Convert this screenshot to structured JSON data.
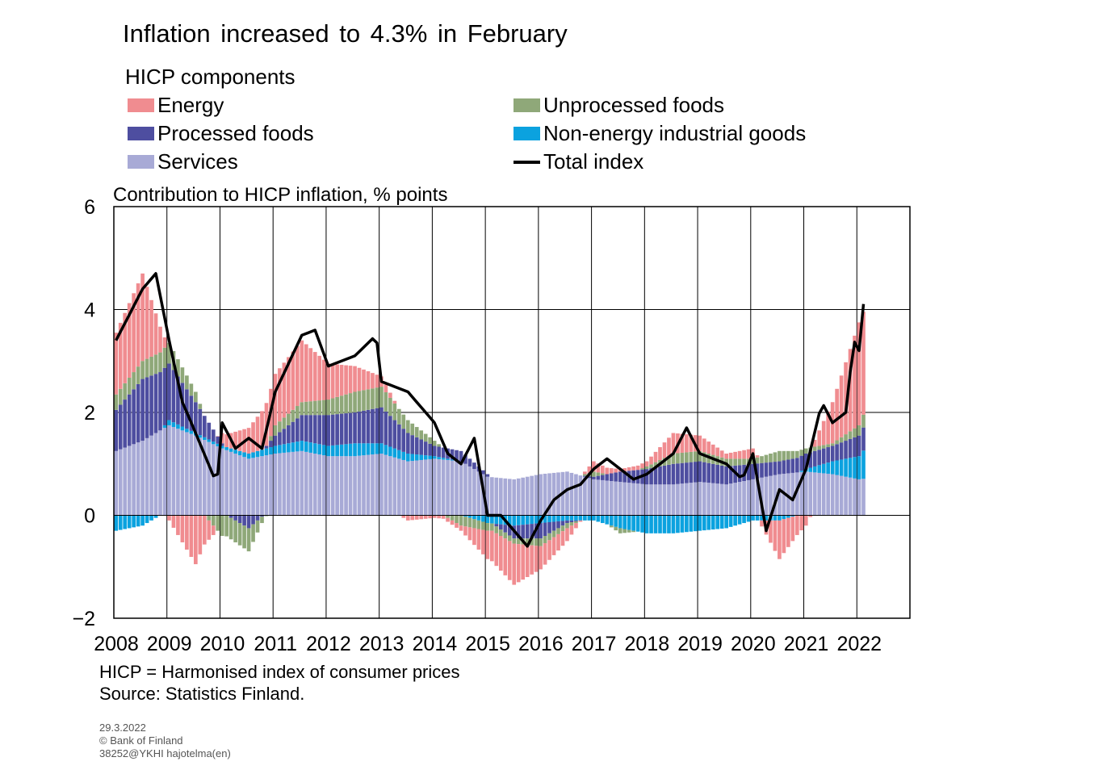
{
  "title": "Inflation increased to 4.3% in February",
  "subtitle": "HICP components",
  "legend": [
    {
      "label": "Energy",
      "color": "#f08c90",
      "kind": "bar"
    },
    {
      "label": "Unprocessed foods",
      "color": "#8fa879",
      "kind": "bar"
    },
    {
      "label": "Processed foods",
      "color": "#4e4ea0",
      "kind": "bar"
    },
    {
      "label": "Non-energy industrial goods",
      "color": "#0ba2df",
      "kind": "bar"
    },
    {
      "label": "Services",
      "color": "#a8aad6",
      "kind": "bar"
    },
    {
      "label": "Total index",
      "color": "#000000",
      "kind": "line"
    }
  ],
  "footnotes": {
    "line1": "HICP = Harmonised index of consumer prices",
    "line2": "Source: Statistics Finland."
  },
  "meta": {
    "date": "29.3.2022",
    "copyright": "© Bank of Finland",
    "code": "38252@YKHI hajotelma(en)"
  },
  "chart_data": {
    "type": "bar",
    "stacked": true,
    "ylabel": "Contribution to HICP inflation, % points",
    "ylim": [
      -2,
      6
    ],
    "yticks": [
      "−2",
      "0",
      "2",
      "4",
      "6"
    ],
    "ytick_values": [
      -2,
      0,
      2,
      4,
      6
    ],
    "xticks": [
      "2008",
      "2009",
      "2010",
      "2011",
      "2012",
      "2013",
      "2014",
      "2015",
      "2016",
      "2017",
      "2018",
      "2019",
      "2020",
      "2021",
      "2022"
    ],
    "grid": true,
    "x_start": "2008-01",
    "interval": "monthly",
    "x_end": "2022-02",
    "series_anchors_note": "values given at yearly anchor points as [year, value]; monthly values interpolated",
    "series": [
      {
        "name": "Services",
        "color": "#a8aad6",
        "anchors": [
          [
            2008.0,
            1.25
          ],
          [
            2008.5,
            1.45
          ],
          [
            2009.0,
            1.75
          ],
          [
            2009.5,
            1.55
          ],
          [
            2010.0,
            1.3
          ],
          [
            2010.5,
            1.1
          ],
          [
            2011.0,
            1.2
          ],
          [
            2011.5,
            1.25
          ],
          [
            2012.0,
            1.15
          ],
          [
            2012.5,
            1.15
          ],
          [
            2013.0,
            1.2
          ],
          [
            2013.5,
            1.05
          ],
          [
            2014.0,
            1.1
          ],
          [
            2014.5,
            1.05
          ],
          [
            2015.0,
            0.75
          ],
          [
            2015.5,
            0.7
          ],
          [
            2016.0,
            0.8
          ],
          [
            2016.5,
            0.85
          ],
          [
            2017.0,
            0.7
          ],
          [
            2017.5,
            0.65
          ],
          [
            2018.0,
            0.6
          ],
          [
            2018.5,
            0.6
          ],
          [
            2019.0,
            0.65
          ],
          [
            2019.5,
            0.6
          ],
          [
            2020.0,
            0.7
          ],
          [
            2020.5,
            0.8
          ],
          [
            2021.0,
            0.85
          ],
          [
            2021.5,
            0.8
          ],
          [
            2022.0,
            0.7
          ],
          [
            2022.17,
            0.72
          ]
        ]
      },
      {
        "name": "Non-energy industrial goods",
        "color": "#0ba2df",
        "anchors": [
          [
            2008.0,
            -0.3
          ],
          [
            2008.5,
            -0.2
          ],
          [
            2009.0,
            0.1
          ],
          [
            2009.5,
            0.05
          ],
          [
            2010.0,
            0.05
          ],
          [
            2010.5,
            0.1
          ],
          [
            2011.0,
            0.15
          ],
          [
            2011.5,
            0.2
          ],
          [
            2012.0,
            0.2
          ],
          [
            2012.5,
            0.25
          ],
          [
            2013.0,
            0.2
          ],
          [
            2013.5,
            0.15
          ],
          [
            2014.0,
            0.05
          ],
          [
            2014.5,
            0.0
          ],
          [
            2015.0,
            -0.15
          ],
          [
            2015.5,
            -0.2
          ],
          [
            2016.0,
            -0.15
          ],
          [
            2016.5,
            -0.1
          ],
          [
            2017.0,
            -0.1
          ],
          [
            2017.5,
            -0.25
          ],
          [
            2018.0,
            -0.35
          ],
          [
            2018.5,
            -0.35
          ],
          [
            2019.0,
            -0.3
          ],
          [
            2019.5,
            -0.25
          ],
          [
            2020.0,
            -0.1
          ],
          [
            2020.5,
            -0.1
          ],
          [
            2021.0,
            0.05
          ],
          [
            2021.5,
            0.25
          ],
          [
            2022.0,
            0.45
          ],
          [
            2022.17,
            0.65
          ]
        ]
      },
      {
        "name": "Processed foods",
        "color": "#4e4ea0",
        "anchors": [
          [
            2008.0,
            0.8
          ],
          [
            2008.5,
            1.2
          ],
          [
            2009.0,
            1.1
          ],
          [
            2009.5,
            0.6
          ],
          [
            2010.0,
            0.05
          ],
          [
            2010.5,
            -0.25
          ],
          [
            2011.0,
            0.2
          ],
          [
            2011.5,
            0.5
          ],
          [
            2012.0,
            0.6
          ],
          [
            2012.5,
            0.6
          ],
          [
            2013.0,
            0.7
          ],
          [
            2013.5,
            0.4
          ],
          [
            2014.0,
            0.2
          ],
          [
            2014.5,
            0.2
          ],
          [
            2015.0,
            0.05
          ],
          [
            2015.5,
            -0.25
          ],
          [
            2016.0,
            -0.3
          ],
          [
            2016.5,
            -0.05
          ],
          [
            2017.0,
            0.05
          ],
          [
            2017.5,
            0.2
          ],
          [
            2018.0,
            0.3
          ],
          [
            2018.5,
            0.4
          ],
          [
            2019.0,
            0.4
          ],
          [
            2019.5,
            0.35
          ],
          [
            2020.0,
            0.3
          ],
          [
            2020.5,
            0.25
          ],
          [
            2021.0,
            0.3
          ],
          [
            2021.5,
            0.3
          ],
          [
            2022.0,
            0.4
          ],
          [
            2022.17,
            0.5
          ]
        ]
      },
      {
        "name": "Unprocessed foods",
        "color": "#8fa879",
        "anchors": [
          [
            2008.0,
            0.3
          ],
          [
            2008.5,
            0.35
          ],
          [
            2009.0,
            0.4
          ],
          [
            2009.5,
            0.2
          ],
          [
            2010.0,
            -0.4
          ],
          [
            2010.5,
            -0.45
          ],
          [
            2011.0,
            0.2
          ],
          [
            2011.5,
            0.25
          ],
          [
            2012.0,
            0.3
          ],
          [
            2012.5,
            0.4
          ],
          [
            2013.0,
            0.4
          ],
          [
            2013.5,
            0.25
          ],
          [
            2014.0,
            0.1
          ],
          [
            2014.5,
            -0.2
          ],
          [
            2015.0,
            -0.15
          ],
          [
            2015.5,
            -0.1
          ],
          [
            2016.0,
            -0.15
          ],
          [
            2016.5,
            -0.1
          ],
          [
            2017.0,
            0.1
          ],
          [
            2017.5,
            -0.1
          ],
          [
            2018.0,
            0.05
          ],
          [
            2018.5,
            0.2
          ],
          [
            2019.0,
            0.2
          ],
          [
            2019.5,
            0.15
          ],
          [
            2020.0,
            0.1
          ],
          [
            2020.5,
            0.2
          ],
          [
            2021.0,
            0.1
          ],
          [
            2021.5,
            0.05
          ],
          [
            2022.0,
            0.2
          ],
          [
            2022.17,
            0.3
          ]
        ]
      },
      {
        "name": "Energy",
        "color": "#f08c90",
        "anchors": [
          [
            2008.0,
            1.2
          ],
          [
            2008.5,
            1.7
          ],
          [
            2009.0,
            -0.1
          ],
          [
            2009.5,
            -0.95
          ],
          [
            2010.0,
            0.2
          ],
          [
            2010.5,
            0.5
          ],
          [
            2011.0,
            1.0
          ],
          [
            2011.5,
            1.2
          ],
          [
            2012.0,
            0.7
          ],
          [
            2012.5,
            0.5
          ],
          [
            2013.0,
            0.2
          ],
          [
            2013.5,
            -0.1
          ],
          [
            2014.0,
            -0.05
          ],
          [
            2014.5,
            -0.1
          ],
          [
            2015.0,
            -0.55
          ],
          [
            2015.5,
            -0.8
          ],
          [
            2016.0,
            -0.45
          ],
          [
            2016.5,
            -0.25
          ],
          [
            2017.0,
            0.2
          ],
          [
            2017.5,
            0.05
          ],
          [
            2018.0,
            0.1
          ],
          [
            2018.5,
            0.4
          ],
          [
            2019.0,
            0.3
          ],
          [
            2019.5,
            0.1
          ],
          [
            2020.0,
            0.2
          ],
          [
            2020.5,
            -0.75
          ],
          [
            2021.0,
            -0.2
          ],
          [
            2021.5,
            0.8
          ],
          [
            2022.0,
            2.0
          ],
          [
            2022.17,
            2.0
          ]
        ]
      }
    ],
    "total_index": {
      "name": "Total index",
      "color": "#000000",
      "anchors": [
        [
          2008.0,
          3.4
        ],
        [
          2008.5,
          4.4
        ],
        [
          2008.75,
          4.7
        ],
        [
          2009.0,
          3.4
        ],
        [
          2009.25,
          2.2
        ],
        [
          2009.5,
          1.6
        ],
        [
          2009.9,
          0.6
        ],
        [
          2010.0,
          1.8
        ],
        [
          2010.25,
          1.3
        ],
        [
          2010.5,
          1.5
        ],
        [
          2010.75,
          1.3
        ],
        [
          2011.0,
          2.4
        ],
        [
          2011.5,
          3.5
        ],
        [
          2011.75,
          3.6
        ],
        [
          2012.0,
          2.9
        ],
        [
          2012.5,
          3.1
        ],
        [
          2012.9,
          3.5
        ],
        [
          2013.0,
          2.6
        ],
        [
          2013.5,
          2.4
        ],
        [
          2013.75,
          2.1
        ],
        [
          2014.0,
          1.8
        ],
        [
          2014.25,
          1.2
        ],
        [
          2014.5,
          1.0
        ],
        [
          2014.75,
          1.5
        ],
        [
          2015.0,
          0.0
        ],
        [
          2015.25,
          0.0
        ],
        [
          2015.5,
          -0.3
        ],
        [
          2015.75,
          -0.6
        ],
        [
          2016.0,
          -0.1
        ],
        [
          2016.25,
          0.3
        ],
        [
          2016.5,
          0.5
        ],
        [
          2016.75,
          0.6
        ],
        [
          2017.0,
          0.9
        ],
        [
          2017.25,
          1.1
        ],
        [
          2017.5,
          0.9
        ],
        [
          2017.75,
          0.7
        ],
        [
          2018.0,
          0.8
        ],
        [
          2018.5,
          1.2
        ],
        [
          2018.75,
          1.7
        ],
        [
          2019.0,
          1.2
        ],
        [
          2019.5,
          1.0
        ],
        [
          2019.8,
          0.7
        ],
        [
          2020.0,
          1.2
        ],
        [
          2020.25,
          -0.3
        ],
        [
          2020.5,
          0.5
        ],
        [
          2020.75,
          0.3
        ],
        [
          2021.0,
          0.9
        ],
        [
          2021.3,
          2.2
        ],
        [
          2021.5,
          1.8
        ],
        [
          2021.75,
          2.0
        ],
        [
          2021.9,
          3.4
        ],
        [
          2022.0,
          3.2
        ],
        [
          2022.08,
          4.1
        ],
        [
          2022.17,
          4.3
        ]
      ]
    }
  }
}
